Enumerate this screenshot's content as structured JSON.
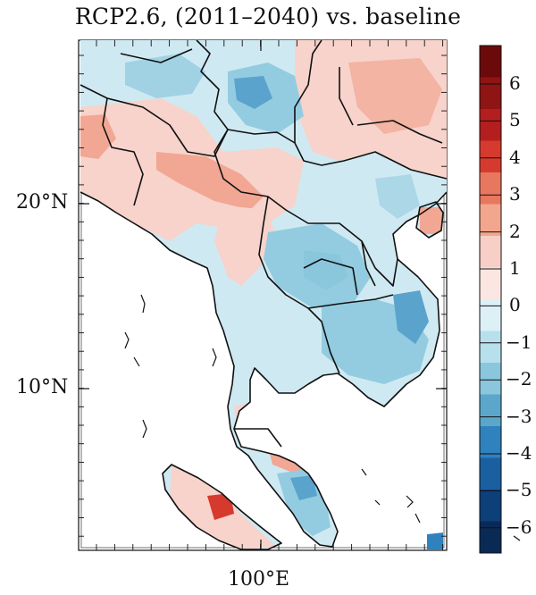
{
  "title": "RCP2.6, (2011–2040) vs. baseline",
  "axes": {
    "lat_labels": [
      "20°N",
      "10°N"
    ],
    "lon_labels": [
      "100°E"
    ]
  },
  "colorbar": {
    "ticks": [
      "6",
      "5",
      "4",
      "3",
      "2",
      "1",
      "0",
      "−1",
      "−2",
      "−3",
      "−4",
      "−5",
      "−6"
    ],
    "colors": [
      "#6b0a0a",
      "#8f1414",
      "#b41e1e",
      "#d63a2e",
      "#e8775f",
      "#f2a68e",
      "#f7cfc6",
      "#fbe6e2",
      "#dcf0f6",
      "#b7e0ec",
      "#8ac7dd",
      "#5aa7cb",
      "#2f82bd",
      "#1a5fa0",
      "#0d3f78",
      "#0a2a56"
    ]
  },
  "palette": {
    "land_base_blue": "#cfe9f2",
    "land_light_red": "#f7d3cb",
    "land_red": "#f1a793",
    "land_mid_blue": "#93cce0",
    "land_dark_blue": "#5aa3cc",
    "border": "#111111"
  }
}
